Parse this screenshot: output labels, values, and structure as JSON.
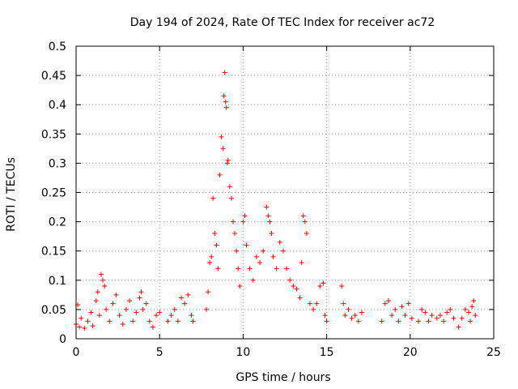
{
  "chart_data": {
    "type": "scatter",
    "title": "Day 194 of 2024, Rate Of TEC Index for receiver ac72",
    "xlabel": "GPS time / hours",
    "ylabel": "ROTI / TECUs",
    "xlim": [
      0,
      25
    ],
    "ylim": [
      0,
      0.5
    ],
    "xticks": [
      0,
      5,
      10,
      15,
      20,
      25
    ],
    "xtick_labels": [
      "0",
      "5",
      "10",
      "15",
      "20",
      "25"
    ],
    "yticks": [
      0,
      0.05,
      0.1,
      0.15,
      0.2,
      0.25,
      0.3,
      0.35,
      0.4,
      0.45,
      0.5
    ],
    "ytick_labels": [
      "0",
      "0.05",
      "0.1",
      "0.15",
      "0.2",
      "0.25",
      "0.3",
      "0.35",
      "0.4",
      "0.45",
      "0.5"
    ],
    "grid": true,
    "marker": "plus",
    "color": "#ff0000",
    "series": [
      {
        "name": "ROTI",
        "points": [
          [
            0.0,
            0.025
          ],
          [
            0.1,
            0.058
          ],
          [
            0.2,
            0.02
          ],
          [
            0.3,
            0.035
          ],
          [
            0.5,
            0.018
          ],
          [
            0.7,
            0.03
          ],
          [
            0.9,
            0.045
          ],
          [
            1.0,
            0.022
          ],
          [
            1.2,
            0.065
          ],
          [
            1.3,
            0.08
          ],
          [
            1.4,
            0.04
          ],
          [
            1.5,
            0.11
          ],
          [
            1.6,
            0.1
          ],
          [
            1.7,
            0.09
          ],
          [
            1.8,
            0.05
          ],
          [
            2.0,
            0.03
          ],
          [
            2.2,
            0.06
          ],
          [
            2.4,
            0.075
          ],
          [
            2.6,
            0.04
          ],
          [
            2.8,
            0.025
          ],
          [
            3.0,
            0.05
          ],
          [
            3.2,
            0.065
          ],
          [
            3.4,
            0.03
          ],
          [
            3.6,
            0.045
          ],
          [
            3.8,
            0.07
          ],
          [
            3.9,
            0.08
          ],
          [
            4.0,
            0.05
          ],
          [
            4.2,
            0.06
          ],
          [
            4.4,
            0.03
          ],
          [
            4.6,
            0.02
          ],
          [
            4.8,
            0.04
          ],
          [
            5.0,
            0.045
          ],
          [
            5.5,
            0.03
          ],
          [
            5.7,
            0.04
          ],
          [
            5.9,
            0.05
          ],
          [
            6.1,
            0.03
          ],
          [
            6.3,
            0.07
          ],
          [
            6.5,
            0.06
          ],
          [
            6.7,
            0.075
          ],
          [
            6.9,
            0.04
          ],
          [
            7.0,
            0.03
          ],
          [
            7.8,
            0.05
          ],
          [
            7.9,
            0.08
          ],
          [
            8.0,
            0.13
          ],
          [
            8.1,
            0.14
          ],
          [
            8.2,
            0.24
          ],
          [
            8.3,
            0.18
          ],
          [
            8.4,
            0.16
          ],
          [
            8.5,
            0.12
          ],
          [
            8.6,
            0.28
          ],
          [
            8.7,
            0.345
          ],
          [
            8.8,
            0.325
          ],
          [
            8.85,
            0.415
          ],
          [
            8.9,
            0.455
          ],
          [
            8.95,
            0.405
          ],
          [
            9.0,
            0.395
          ],
          [
            9.05,
            0.3
          ],
          [
            9.1,
            0.305
          ],
          [
            9.2,
            0.26
          ],
          [
            9.3,
            0.24
          ],
          [
            9.4,
            0.2
          ],
          [
            9.5,
            0.18
          ],
          [
            9.6,
            0.15
          ],
          [
            9.7,
            0.12
          ],
          [
            9.8,
            0.09
          ],
          [
            10.0,
            0.2
          ],
          [
            10.1,
            0.21
          ],
          [
            10.2,
            0.16
          ],
          [
            10.4,
            0.12
          ],
          [
            10.6,
            0.1
          ],
          [
            10.8,
            0.14
          ],
          [
            11.0,
            0.13
          ],
          [
            11.2,
            0.15
          ],
          [
            11.4,
            0.225
          ],
          [
            11.5,
            0.21
          ],
          [
            11.6,
            0.2
          ],
          [
            11.7,
            0.18
          ],
          [
            11.8,
            0.14
          ],
          [
            12.0,
            0.12
          ],
          [
            12.2,
            0.165
          ],
          [
            12.4,
            0.15
          ],
          [
            12.6,
            0.12
          ],
          [
            12.8,
            0.1
          ],
          [
            13.0,
            0.09
          ],
          [
            13.2,
            0.085
          ],
          [
            13.4,
            0.07
          ],
          [
            13.5,
            0.13
          ],
          [
            13.6,
            0.21
          ],
          [
            13.7,
            0.2
          ],
          [
            13.8,
            0.18
          ],
          [
            14.0,
            0.06
          ],
          [
            14.2,
            0.05
          ],
          [
            14.4,
            0.06
          ],
          [
            14.6,
            0.09
          ],
          [
            14.8,
            0.095
          ],
          [
            14.9,
            0.04
          ],
          [
            15.0,
            0.03
          ],
          [
            15.9,
            0.09
          ],
          [
            16.0,
            0.06
          ],
          [
            16.1,
            0.04
          ],
          [
            16.3,
            0.05
          ],
          [
            16.5,
            0.035
          ],
          [
            16.7,
            0.04
          ],
          [
            16.9,
            0.03
          ],
          [
            17.1,
            0.045
          ],
          [
            18.3,
            0.03
          ],
          [
            18.5,
            0.06
          ],
          [
            18.7,
            0.065
          ],
          [
            18.9,
            0.04
          ],
          [
            19.1,
            0.05
          ],
          [
            19.3,
            0.03
          ],
          [
            19.5,
            0.055
          ],
          [
            19.7,
            0.04
          ],
          [
            19.9,
            0.06
          ],
          [
            20.1,
            0.035
          ],
          [
            20.5,
            0.03
          ],
          [
            20.7,
            0.05
          ],
          [
            20.9,
            0.045
          ],
          [
            21.1,
            0.03
          ],
          [
            21.3,
            0.04
          ],
          [
            21.6,
            0.035
          ],
          [
            21.8,
            0.04
          ],
          [
            22.0,
            0.03
          ],
          [
            22.2,
            0.045
          ],
          [
            22.4,
            0.05
          ],
          [
            22.6,
            0.035
          ],
          [
            22.9,
            0.02
          ],
          [
            23.1,
            0.035
          ],
          [
            23.3,
            0.05
          ],
          [
            23.5,
            0.045
          ],
          [
            23.6,
            0.03
          ],
          [
            23.7,
            0.055
          ],
          [
            23.8,
            0.065
          ],
          [
            23.9,
            0.04
          ]
        ]
      }
    ]
  }
}
